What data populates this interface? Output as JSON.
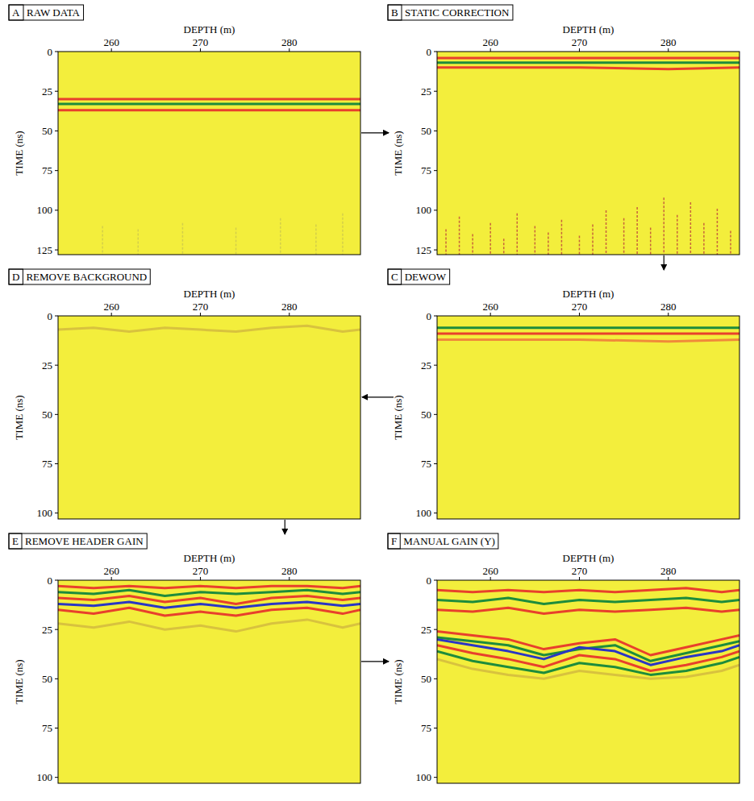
{
  "chart_data": [
    {
      "type": "radargram",
      "label": "A",
      "title": "RAW DATA",
      "x_label": "DEPTH (m)",
      "y_label": "TIME (ns)",
      "xlim": [
        254,
        288
      ],
      "xticks": [
        260,
        270,
        280
      ],
      "ylim": [
        0,
        128
      ],
      "yticks": [
        0,
        25,
        50,
        75,
        100,
        125
      ],
      "reflectors": [
        {
          "color": "#e8402c",
          "x": [
            254,
            288
          ],
          "values": [
            30,
            30
          ]
        },
        {
          "color": "#1e8c3c",
          "x": [
            254,
            288
          ],
          "values": [
            33,
            33
          ]
        },
        {
          "color": "#e8402c",
          "x": [
            254,
            288
          ],
          "values": [
            37,
            37
          ]
        }
      ],
      "clutter": {
        "color": "#d4cf4a",
        "x": [
          259,
          263,
          268,
          274,
          279,
          283,
          286
        ],
        "values": [
          110,
          112,
          108,
          111,
          105,
          109,
          102
        ]
      }
    },
    {
      "type": "radargram",
      "label": "B",
      "title": "STATIC CORRECTION",
      "x_label": "DEPTH (m)",
      "y_label": "TIME (ns)",
      "xlim": [
        254,
        288
      ],
      "xticks": [
        260,
        270,
        280
      ],
      "ylim": [
        0,
        128
      ],
      "yticks": [
        0,
        25,
        50,
        75,
        100,
        125
      ],
      "reflectors": [
        {
          "color": "#e8402c",
          "x": [
            254,
            288
          ],
          "values": [
            4,
            4
          ]
        },
        {
          "color": "#1e8c3c",
          "x": [
            254,
            288
          ],
          "values": [
            7,
            7
          ]
        },
        {
          "color": "#e8402c",
          "x": [
            254,
            270,
            280,
            288
          ],
          "values": [
            10,
            10,
            11,
            10
          ]
        }
      ],
      "clutter": {
        "color": "#c8663a",
        "x": [
          255,
          256.5,
          258,
          260,
          261.5,
          263,
          265,
          266.5,
          268,
          270,
          271.5,
          273,
          275,
          276.5,
          278,
          279.5,
          281,
          282.5,
          284,
          285.5,
          287
        ],
        "values": [
          112,
          104,
          115,
          108,
          118,
          102,
          110,
          114,
          106,
          116,
          109,
          100,
          105,
          98,
          111,
          92,
          103,
          95,
          108,
          99,
          113
        ]
      }
    },
    {
      "type": "radargram",
      "label": "C",
      "title": "DEWOW",
      "x_label": "DEPTH (m)",
      "y_label": "TIME (ns)",
      "xlim": [
        254,
        288
      ],
      "xticks": [
        260,
        270,
        280
      ],
      "ylim": [
        0,
        103
      ],
      "yticks": [
        0,
        25,
        50,
        75,
        100
      ],
      "reflectors": [
        {
          "color": "#1e8c3c",
          "x": [
            254,
            288
          ],
          "values": [
            6,
            6
          ]
        },
        {
          "color": "#e8402c",
          "x": [
            254,
            288
          ],
          "values": [
            9,
            9
          ]
        },
        {
          "color": "#f08a3a",
          "x": [
            254,
            270,
            280,
            288
          ],
          "values": [
            12,
            12,
            13,
            12
          ]
        }
      ]
    },
    {
      "type": "radargram",
      "label": "D",
      "title": "REMOVE BACKGROUND",
      "x_label": "DEPTH (m)",
      "y_label": "TIME (ns)",
      "xlim": [
        254,
        288
      ],
      "xticks": [
        260,
        270,
        280
      ],
      "ylim": [
        0,
        103
      ],
      "yticks": [
        0,
        25,
        50,
        75,
        100
      ],
      "reflectors": [
        {
          "color": "#d8c23e",
          "x": [
            254,
            258,
            262,
            266,
            270,
            274,
            278,
            282,
            286,
            288
          ],
          "values": [
            7,
            6,
            8,
            6,
            7,
            8,
            6,
            5,
            8,
            7
          ]
        }
      ]
    },
    {
      "type": "radargram",
      "label": "E",
      "title": "REMOVE HEADER GAIN",
      "x_label": "DEPTH (m)",
      "y_label": "TIME (ns)",
      "xlim": [
        254,
        288
      ],
      "xticks": [
        260,
        270,
        280
      ],
      "ylim": [
        0,
        103
      ],
      "yticks": [
        0,
        25,
        50,
        75,
        100
      ],
      "reflectors": [
        {
          "color": "#e8402c",
          "x": [
            254,
            258,
            262,
            266,
            270,
            274,
            278,
            282,
            286,
            288
          ],
          "values": [
            3,
            4,
            3,
            4,
            3,
            4,
            3,
            3,
            4,
            3
          ]
        },
        {
          "color": "#1e8c3c",
          "x": [
            254,
            258,
            262,
            266,
            270,
            274,
            278,
            282,
            286,
            288
          ],
          "values": [
            6,
            7,
            5,
            8,
            6,
            7,
            6,
            5,
            7,
            6
          ]
        },
        {
          "color": "#e8402c",
          "x": [
            254,
            258,
            262,
            266,
            270,
            274,
            278,
            282,
            286,
            288
          ],
          "values": [
            9,
            10,
            8,
            11,
            9,
            12,
            9,
            8,
            10,
            9
          ]
        },
        {
          "color": "#2a36c4",
          "x": [
            254,
            258,
            262,
            266,
            270,
            274,
            278,
            282,
            286,
            288
          ],
          "values": [
            12,
            13,
            11,
            14,
            12,
            14,
            12,
            11,
            13,
            12
          ]
        },
        {
          "color": "#e8402c",
          "x": [
            254,
            258,
            262,
            266,
            270,
            274,
            278,
            282,
            286,
            288
          ],
          "values": [
            15,
            17,
            14,
            18,
            16,
            18,
            15,
            14,
            17,
            15
          ]
        },
        {
          "color": "#d8c23e",
          "x": [
            254,
            258,
            262,
            266,
            270,
            274,
            278,
            282,
            286,
            288
          ],
          "values": [
            22,
            24,
            21,
            25,
            23,
            26,
            22,
            20,
            24,
            22
          ]
        }
      ]
    },
    {
      "type": "radargram",
      "label": "F",
      "title": "MANUAL GAIN (Y)",
      "x_label": "DEPTH (m)",
      "y_label": "TIME (ns)",
      "xlim": [
        254,
        288
      ],
      "xticks": [
        260,
        270,
        280
      ],
      "ylim": [
        0,
        103
      ],
      "yticks": [
        0,
        25,
        50,
        75,
        100
      ],
      "reflectors": [
        {
          "color": "#e8402c",
          "x": [
            254,
            258,
            262,
            266,
            270,
            274,
            278,
            282,
            286,
            288
          ],
          "values": [
            5,
            6,
            5,
            6,
            5,
            6,
            5,
            4,
            6,
            5
          ]
        },
        {
          "color": "#1e8c3c",
          "x": [
            254,
            258,
            262,
            266,
            270,
            274,
            278,
            282,
            286,
            288
          ],
          "values": [
            10,
            11,
            9,
            12,
            10,
            11,
            10,
            9,
            11,
            10
          ]
        },
        {
          "color": "#e8402c",
          "x": [
            254,
            258,
            262,
            266,
            270,
            274,
            278,
            282,
            286,
            288
          ],
          "values": [
            15,
            16,
            14,
            17,
            15,
            16,
            15,
            14,
            16,
            15
          ]
        },
        {
          "color": "#e8402c",
          "x": [
            254,
            258,
            262,
            266,
            270,
            274,
            278,
            282,
            286,
            288
          ],
          "values": [
            26,
            28,
            30,
            35,
            32,
            30,
            38,
            34,
            30,
            28
          ]
        },
        {
          "color": "#1e8c3c",
          "x": [
            254,
            258,
            262,
            266,
            270,
            274,
            278,
            282,
            286,
            288
          ],
          "values": [
            29,
            31,
            33,
            38,
            35,
            33,
            41,
            37,
            33,
            31
          ]
        },
        {
          "color": "#2a36c4",
          "x": [
            254,
            258,
            262,
            266,
            270,
            274,
            278,
            282,
            286,
            288
          ],
          "values": [
            30,
            33,
            36,
            40,
            34,
            36,
            43,
            39,
            36,
            33
          ]
        },
        {
          "color": "#e8402c",
          "x": [
            254,
            258,
            262,
            266,
            270,
            274,
            278,
            282,
            286,
            288
          ],
          "values": [
            33,
            37,
            40,
            44,
            38,
            40,
            46,
            43,
            39,
            36
          ]
        },
        {
          "color": "#1e8c3c",
          "x": [
            254,
            258,
            262,
            266,
            270,
            274,
            278,
            282,
            286,
            288
          ],
          "values": [
            36,
            41,
            44,
            47,
            42,
            44,
            48,
            46,
            42,
            39
          ]
        },
        {
          "color": "#d8c23e",
          "x": [
            254,
            258,
            262,
            266,
            270,
            274,
            278,
            282,
            286,
            288
          ],
          "values": [
            40,
            45,
            48,
            50,
            46,
            48,
            50,
            49,
            46,
            43
          ]
        }
      ]
    }
  ]
}
